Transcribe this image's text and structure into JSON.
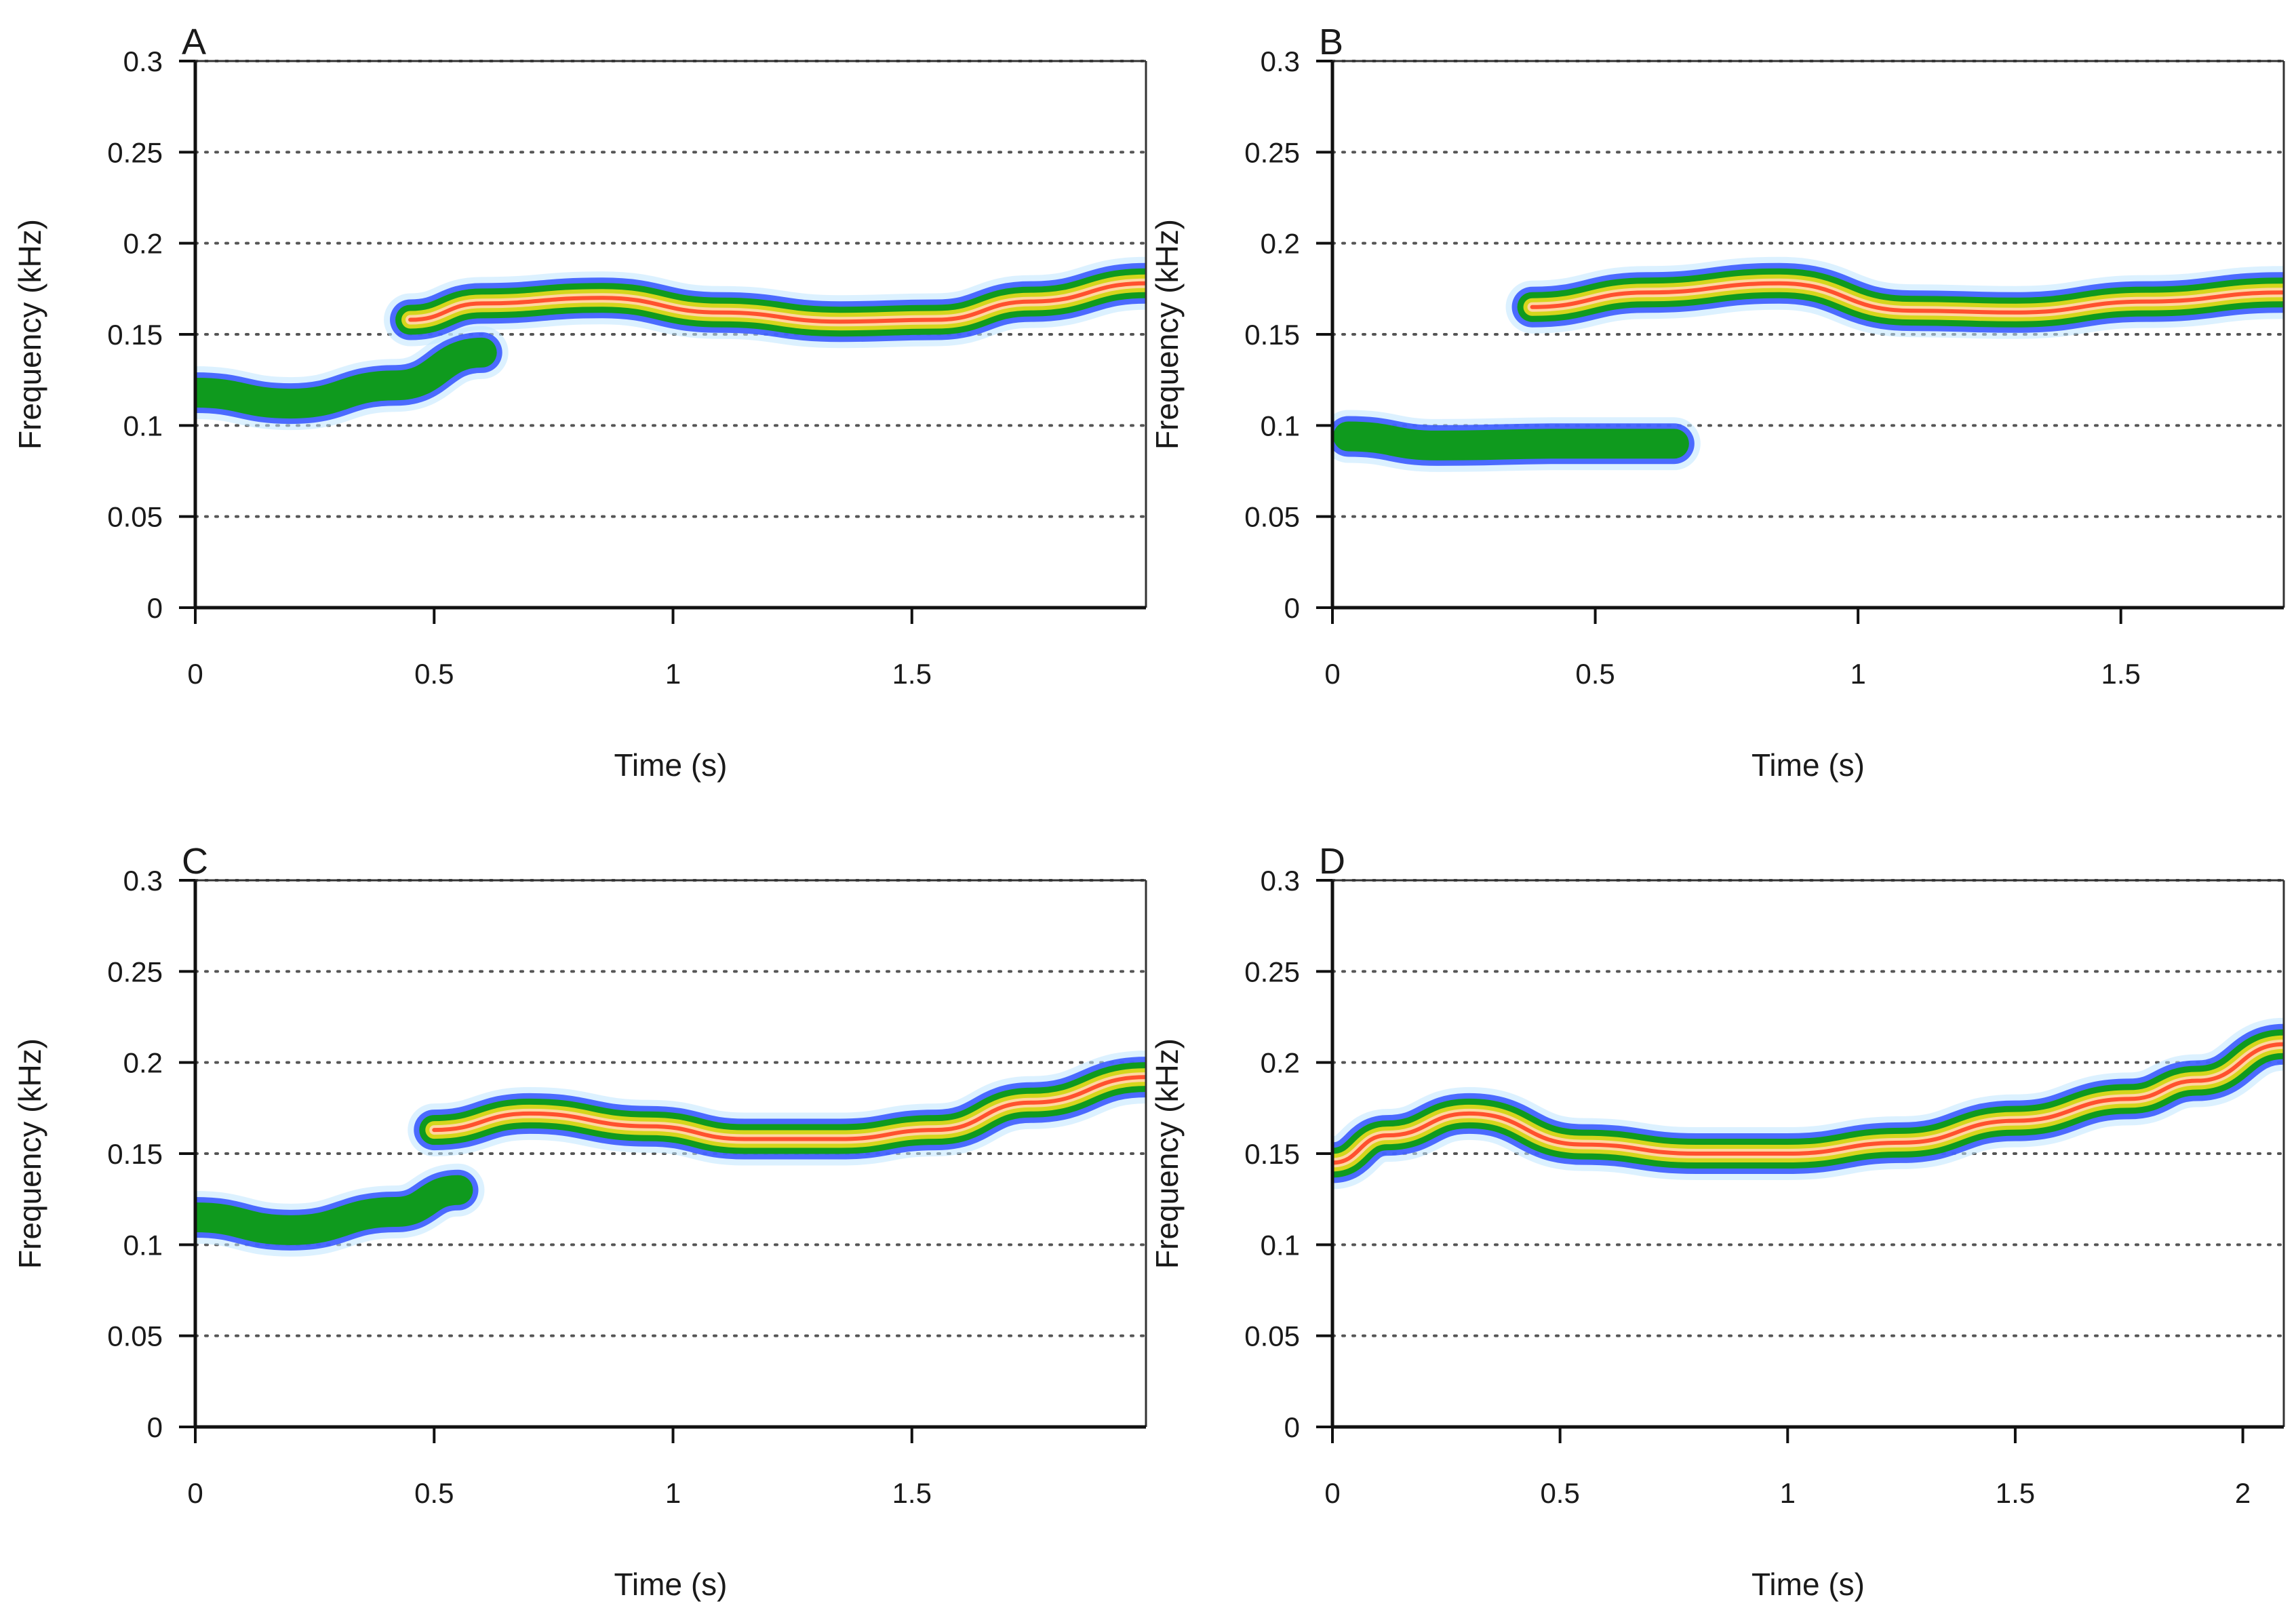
{
  "figure": {
    "description": "Four spectrogram panels of tonal calls"
  },
  "palette": {
    "low": "#bfe6ff",
    "mid_low": "#3b5bff",
    "mid": "#0f9a1e",
    "mid_high": "#d6d61c",
    "high": "#ffd6a0",
    "peak": "#ff3a1a"
  },
  "chart_data": [
    {
      "panel": "A",
      "type": "heatmap",
      "xlabel": "Time (s)",
      "ylabel": "Frequency (kHz)",
      "xlim": [
        0,
        1.99
      ],
      "ylim": [
        0,
        0.3
      ],
      "xticks": [
        "0",
        "0.5",
        "1",
        "1.5"
      ],
      "xtick_values": [
        0,
        0.5,
        1,
        1.5
      ],
      "yticks": [
        "0",
        "0.05",
        "0.1",
        "0.15",
        "0.2",
        "0.25",
        "0.3"
      ],
      "ytick_values": [
        0,
        0.05,
        0.1,
        0.15,
        0.2,
        0.25,
        0.3
      ],
      "grid": "horizontal-dotted",
      "contours": [
        {
          "t": [
            0,
            0.2,
            0.42,
            0.6
          ],
          "f": [
            0.118,
            0.112,
            0.122,
            0.14
          ],
          "intensity": 0.5
        },
        {
          "t": [
            0.45,
            0.6,
            0.85,
            1.1,
            1.35,
            1.55,
            1.75,
            1.99
          ],
          "f": [
            0.158,
            0.167,
            0.17,
            0.162,
            0.157,
            0.158,
            0.168,
            0.178
          ],
          "intensity": 0.95
        }
      ]
    },
    {
      "panel": "B",
      "type": "heatmap",
      "xlabel": "Time (s)",
      "ylabel": "Frequency (kHz)",
      "xlim": [
        0,
        1.81
      ],
      "ylim": [
        0,
        0.3
      ],
      "xticks": [
        "0",
        "0.5",
        "1",
        "1.5"
      ],
      "xtick_values": [
        0,
        0.5,
        1,
        1.5
      ],
      "yticks": [
        "0",
        "0.05",
        "0.1",
        "0.15",
        "0.2",
        "0.25",
        "0.3"
      ],
      "ytick_values": [
        0,
        0.05,
        0.1,
        0.15,
        0.2,
        0.25,
        0.3
      ],
      "grid": "horizontal-dotted",
      "contours": [
        {
          "t": [
            0.03,
            0.2,
            0.45,
            0.65
          ],
          "f": [
            0.094,
            0.089,
            0.09,
            0.09
          ],
          "intensity": 0.45
        },
        {
          "t": [
            0.38,
            0.6,
            0.85,
            1.1,
            1.3,
            1.55,
            1.81
          ],
          "f": [
            0.165,
            0.173,
            0.178,
            0.163,
            0.162,
            0.168,
            0.173
          ],
          "intensity": 0.95
        }
      ]
    },
    {
      "panel": "C",
      "type": "heatmap",
      "xlabel": "Time (s)",
      "ylabel": "Frequency (kHz)",
      "xlim": [
        0,
        1.99
      ],
      "ylim": [
        0,
        0.3
      ],
      "xticks": [
        "0",
        "0.5",
        "1",
        "1.5"
      ],
      "xtick_values": [
        0,
        0.5,
        1,
        1.5
      ],
      "yticks": [
        "0",
        "0.05",
        "0.1",
        "0.15",
        "0.2",
        "0.25",
        "0.3"
      ],
      "ytick_values": [
        0,
        0.05,
        0.1,
        0.15,
        0.2,
        0.25,
        0.3
      ],
      "grid": "horizontal-dotted",
      "contours": [
        {
          "t": [
            0,
            0.2,
            0.42,
            0.55
          ],
          "f": [
            0.115,
            0.108,
            0.118,
            0.13
          ],
          "intensity": 0.5
        },
        {
          "t": [
            0.5,
            0.7,
            0.95,
            1.15,
            1.35,
            1.55,
            1.75,
            1.99
          ],
          "f": [
            0.163,
            0.172,
            0.165,
            0.158,
            0.158,
            0.163,
            0.178,
            0.192
          ],
          "intensity": 0.95
        }
      ]
    },
    {
      "panel": "D",
      "type": "heatmap",
      "xlabel": "Time (s)",
      "ylabel": "Frequency (kHz)",
      "xlim": [
        0,
        2.09
      ],
      "ylim": [
        0,
        0.3
      ],
      "xticks": [
        "0",
        "0.5",
        "1",
        "1.5",
        "2"
      ],
      "xtick_values": [
        0,
        0.5,
        1,
        1.5,
        2
      ],
      "yticks": [
        "0",
        "0.05",
        "0.1",
        "0.15",
        "0.2",
        "0.25",
        "0.3"
      ],
      "ytick_values": [
        0,
        0.05,
        0.1,
        0.15,
        0.2,
        0.25,
        0.3
      ],
      "grid": "horizontal-dotted",
      "contours": [
        {
          "t": [
            0,
            0.12,
            0.3,
            0.55,
            0.8,
            1.0,
            1.25,
            1.5,
            1.75,
            1.9,
            2.09
          ],
          "f": [
            0.145,
            0.16,
            0.172,
            0.155,
            0.15,
            0.15,
            0.156,
            0.168,
            0.18,
            0.19,
            0.21
          ],
          "intensity": 0.95
        }
      ]
    }
  ]
}
